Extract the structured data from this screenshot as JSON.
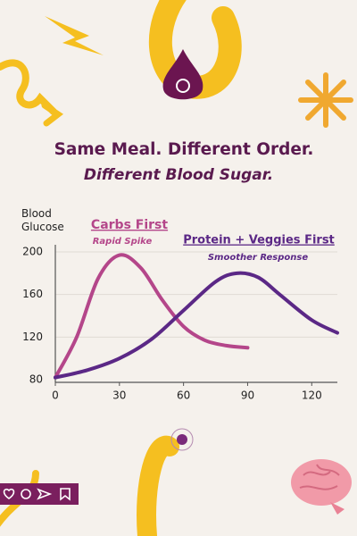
{
  "chart_data": {
    "type": "line",
    "title": "Same Meal. Different Order.",
    "subtitle": "Different Blood Sugar.",
    "y_label": "Blood Glucose",
    "annotations": [
      {
        "text": "Carbs First",
        "subtext": "Rapid Spike"
      },
      {
        "text": "Protein + Veggies First",
        "subtext": "Smoother Response"
      }
    ],
    "series": [
      {
        "name": "Carbs First",
        "color": "#b4468a",
        "x": [
          0,
          10,
          20,
          30,
          40,
          50,
          60,
          70,
          80,
          90
        ],
        "values": [
          82,
          120,
          175,
          197,
          185,
          155,
          130,
          117,
          112,
          110
        ]
      },
      {
        "name": "Protein + Veggies First",
        "color": "#5b2886",
        "x": [
          0,
          15,
          30,
          45,
          60,
          75,
          85,
          95,
          105,
          120,
          132
        ],
        "values": [
          82,
          89,
          100,
          118,
          145,
          172,
          180,
          176,
          160,
          136,
          124
        ]
      }
    ],
    "xlim": [
      0,
      132
    ],
    "ylim": [
      80,
      200
    ],
    "xticks": [
      0,
      30,
      60,
      90,
      120
    ],
    "yticks": [
      80,
      120,
      160,
      200
    ],
    "grid": true
  }
}
